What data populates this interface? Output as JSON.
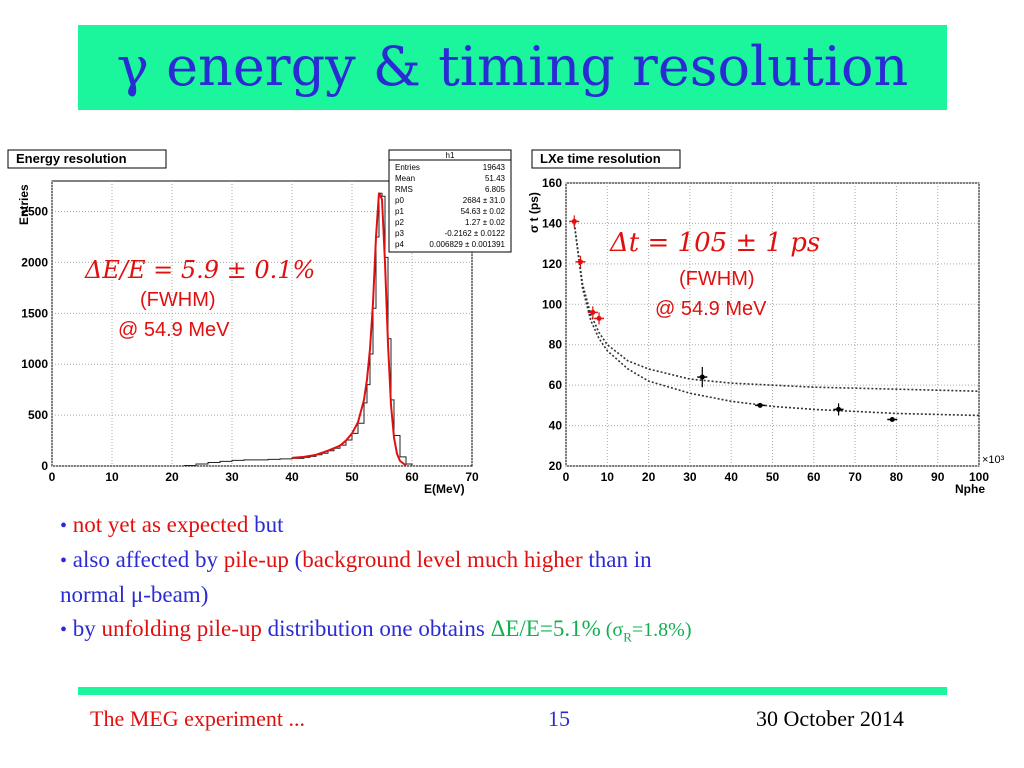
{
  "title": "γ energy & timing resolution",
  "colors": {
    "accent_bar": "#1bf59b",
    "title_text": "#2b2bd6",
    "red": "#e01010",
    "blue": "#2b2bd6",
    "green": "#10b050"
  },
  "left_plot": {
    "box_title": "Energy resolution",
    "ylabel": "Entries",
    "xlabel": "E(MeV)",
    "annotation_formula": "ΔE/E = 5.9 ± 0.1%",
    "annotation_fwhm": "(FWHM)",
    "annotation_energy": "@ 54.9 MeV",
    "stats": {
      "header": "h1",
      "rows": [
        {
          "k": "Entries",
          "v": "19643"
        },
        {
          "k": "Mean",
          "v": "51.43"
        },
        {
          "k": "RMS",
          "v": "6.805"
        },
        {
          "k": "p0",
          "v": "2684 ± 31.0"
        },
        {
          "k": "p1",
          "v": "54.63 ± 0.02"
        },
        {
          "k": "p2",
          "v": "1.27 ± 0.02"
        },
        {
          "k": "p3",
          "v": "-0.2162 ± 0.0122"
        },
        {
          "k": "p4",
          "v": "0.006829 ± 0.001391"
        }
      ]
    }
  },
  "right_plot": {
    "box_title": "LXe time resolution",
    "ylabel": "σ t (ps)",
    "xlabel": "Nphe",
    "x_exponent": "×10³",
    "annotation_formula": "Δt = 105 ± 1 ps",
    "annotation_fwhm": "(FWHM)",
    "annotation_energy": "@ 54.9 MeV"
  },
  "chart_data": [
    {
      "type": "area",
      "title": "Energy resolution",
      "xlabel": "E(MeV)",
      "ylabel": "Entries",
      "xlim": [
        0,
        70
      ],
      "ylim": [
        0,
        2800
      ],
      "xticks": [
        0,
        10,
        20,
        30,
        40,
        50,
        60,
        70
      ],
      "yticks": [
        0,
        500,
        1000,
        1500,
        2000,
        2500
      ],
      "grid": true,
      "series": [
        {
          "name": "h1",
          "x": [
            22,
            24,
            26,
            28,
            30,
            32,
            34,
            36,
            38,
            40,
            42,
            43,
            44,
            45,
            46,
            47,
            48,
            49,
            50,
            51,
            52,
            52.5,
            53,
            53.5,
            54,
            54.5,
            55,
            55.5,
            56,
            56.5,
            57,
            58,
            59,
            60
          ],
          "y": [
            5,
            20,
            35,
            45,
            55,
            60,
            60,
            65,
            70,
            75,
            85,
            95,
            110,
            125,
            150,
            175,
            205,
            255,
            320,
            420,
            620,
            800,
            1100,
            1550,
            2250,
            2680,
            2650,
            2050,
            1250,
            650,
            300,
            90,
            20,
            5
          ]
        },
        {
          "name": "fit",
          "x": [
            40,
            42,
            44,
            46,
            48,
            49,
            50,
            51,
            52,
            52.5,
            53,
            53.5,
            54,
            54.5,
            55,
            55.5,
            56,
            56.5,
            57,
            57.5,
            58,
            59
          ],
          "y": [
            80,
            90,
            110,
            150,
            200,
            250,
            320,
            430,
            650,
            850,
            1150,
            1600,
            2250,
            2684,
            2620,
            2000,
            1200,
            600,
            280,
            120,
            50,
            5
          ]
        }
      ]
    },
    {
      "type": "scatter",
      "title": "LXe time resolution",
      "xlabel": "Nphe",
      "ylabel": "σ t (ps)",
      "x_multiplier": "×10³",
      "xlim": [
        0,
        100
      ],
      "ylim": [
        20,
        160
      ],
      "xticks": [
        0,
        10,
        20,
        30,
        40,
        50,
        60,
        70,
        80,
        90,
        100
      ],
      "yticks": [
        20,
        40,
        60,
        80,
        100,
        120,
        140,
        160
      ],
      "grid": true,
      "series": [
        {
          "name": "red-points",
          "x": [
            2,
            3.5,
            6.5,
            8
          ],
          "y": [
            141,
            121,
            96,
            93
          ],
          "yerr": [
            3,
            3,
            3,
            3
          ]
        },
        {
          "name": "black-points",
          "x": [
            33,
            47,
            66,
            79
          ],
          "y": [
            64,
            50,
            48,
            43
          ],
          "yerr": [
            5,
            1,
            3,
            1
          ]
        }
      ],
      "curves": [
        {
          "name": "fit-upper",
          "x": [
            2,
            4,
            6,
            8,
            10,
            15,
            20,
            30,
            40,
            50,
            60,
            70,
            80,
            90,
            100
          ],
          "y": [
            140,
            110,
            95,
            86,
            80,
            72,
            68,
            63,
            61,
            60,
            59,
            58.5,
            58,
            57.5,
            57
          ]
        },
        {
          "name": "fit-lower",
          "x": [
            2,
            4,
            6,
            8,
            10,
            15,
            20,
            30,
            40,
            50,
            60,
            70,
            80,
            90,
            100
          ],
          "y": [
            140,
            108,
            92,
            83,
            77,
            68,
            62,
            56,
            52,
            49.5,
            48,
            47,
            46,
            45.5,
            45
          ]
        }
      ]
    }
  ],
  "bullets": {
    "b1": {
      "dot": "•",
      "p1": "not yet as expected",
      "p2": " but"
    },
    "b2": {
      "dot": "•",
      "p1": " also affected by ",
      "p2": "pile-up",
      "p3": " (",
      "p4": "background level much higher",
      "p5": " than in",
      "p6": "normal μ-beam)"
    },
    "b3": {
      "dot": "•",
      "p1": " by ",
      "p2": "unfolding pile-up",
      "p3": " distribution one obtains ",
      "p4": "ΔE/E=5.1%",
      "p5": " (σ",
      "p5sub": "R",
      "p6": "=1.8%)"
    }
  },
  "footer": {
    "left": "The MEG experiment ...",
    "center": "15",
    "right": "30 October 2014"
  }
}
